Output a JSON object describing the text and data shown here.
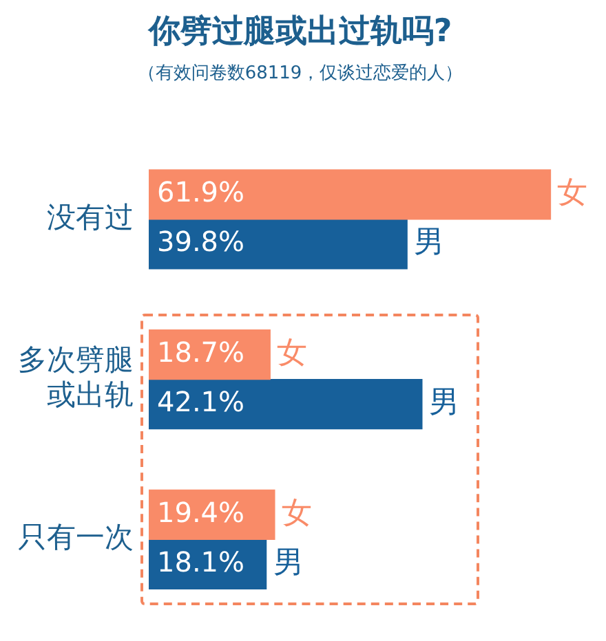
{
  "chart_data": {
    "type": "bar",
    "orientation": "horizontal",
    "title": "你劈过腿或出过轨吗?",
    "subtitle": "（有效问卷数68119，仅谈过恋爱的人）",
    "categories": [
      "没有过",
      "多次劈腿或出轨",
      "只有一次"
    ],
    "series": [
      {
        "name": "女",
        "color": "#f98b68",
        "values": [
          61.9,
          18.7,
          19.4
        ],
        "value_labels": [
          "61.9%",
          "18.7%",
          "19.4%"
        ]
      },
      {
        "name": "男",
        "color": "#17609a",
        "values": [
          39.8,
          42.1,
          18.1
        ],
        "value_labels": [
          "39.8%",
          "42.1%",
          "18.1%"
        ]
      }
    ],
    "tick_labels": "y",
    "legend": false
  }
}
